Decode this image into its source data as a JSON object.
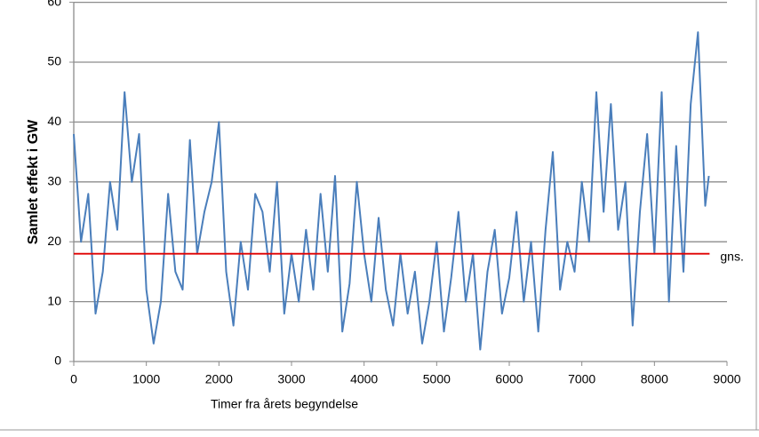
{
  "chart_data": {
    "type": "line",
    "y_label": "Samlet effekt i GW",
    "x_label": "Timer fra årets begyndelse",
    "x": [
      0,
      100,
      200,
      300,
      400,
      500,
      600,
      700,
      800,
      900,
      1000,
      1100,
      1200,
      1300,
      1400,
      1500,
      1600,
      1700,
      1800,
      1900,
      2000,
      2100,
      2200,
      2300,
      2400,
      2500,
      2600,
      2700,
      2800,
      2900,
      3000,
      3100,
      3200,
      3300,
      3400,
      3500,
      3600,
      3700,
      3800,
      3900,
      4000,
      4100,
      4200,
      4300,
      4400,
      4500,
      4600,
      4700,
      4800,
      4900,
      5000,
      5100,
      5200,
      5300,
      5400,
      5500,
      5600,
      5700,
      5800,
      5900,
      6000,
      6100,
      6200,
      6300,
      6400,
      6500,
      6600,
      6700,
      6800,
      6900,
      7000,
      7100,
      7200,
      7300,
      7400,
      7500,
      7600,
      7700,
      7800,
      7900,
      8000,
      8100,
      8200,
      8300,
      8400,
      8500,
      8600,
      8700,
      8750
    ],
    "series": [
      {
        "color": "#4a7ebb",
        "values": [
          38,
          20,
          28,
          8,
          15,
          30,
          22,
          45,
          30,
          38,
          12,
          3,
          10,
          28,
          15,
          12,
          37,
          18,
          25,
          30,
          40,
          15,
          6,
          20,
          12,
          28,
          25,
          15,
          30,
          8,
          18,
          10,
          22,
          12,
          28,
          15,
          31,
          5,
          13,
          30,
          18,
          10,
          24,
          12,
          6,
          18,
          8,
          15,
          3,
          10,
          20,
          5,
          14,
          25,
          10,
          18,
          2,
          15,
          22,
          8,
          14,
          25,
          10,
          20,
          5,
          22,
          35,
          12,
          20,
          15,
          30,
          20,
          45,
          25,
          43,
          22,
          30,
          6,
          25,
          38,
          18,
          45,
          10,
          36,
          15,
          43,
          55,
          26,
          31
        ]
      }
    ],
    "mean": {
      "value": 18,
      "x": [
        0,
        8760
      ],
      "label": "gns.",
      "color": "#e00000"
    },
    "xlim": [
      0,
      9000
    ],
    "xticks": [
      0,
      1000,
      2000,
      3000,
      4000,
      5000,
      6000,
      7000,
      8000,
      9000
    ],
    "ylim": [
      0,
      60
    ],
    "yticks": [
      0,
      10,
      20,
      30,
      40,
      50,
      60
    ],
    "grid": true
  }
}
